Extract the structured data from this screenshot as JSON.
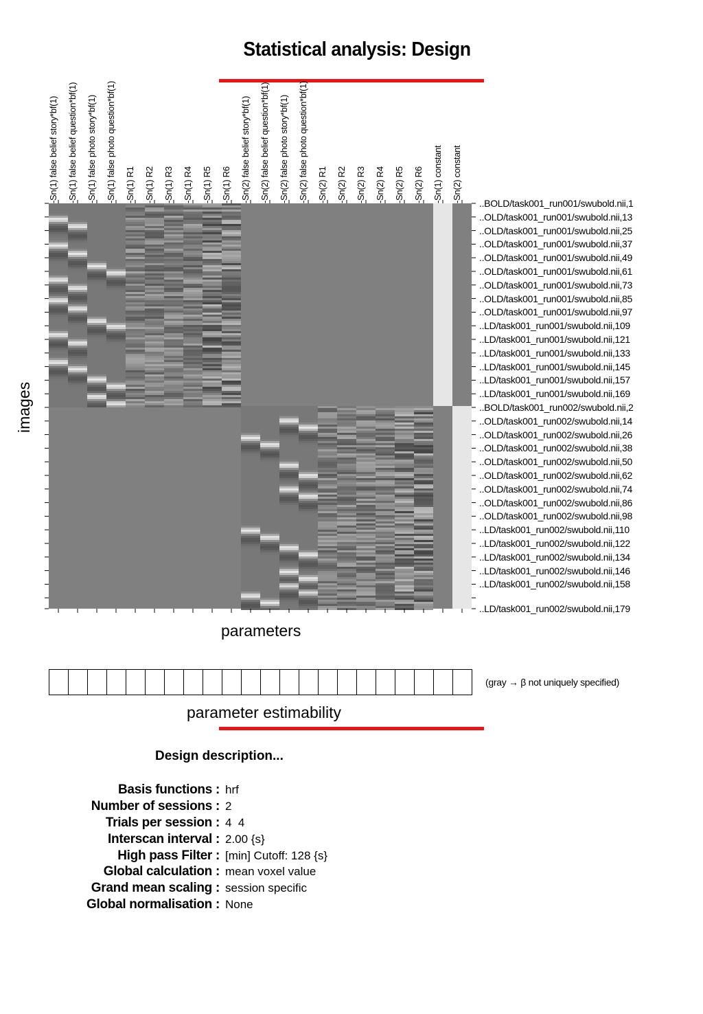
{
  "title": "Statistical analysis: Design",
  "columns": [
    "Sn(1) false belief story*bf(1)",
    "Sn(1) false belief question*bf(1)",
    "Sn(1) false photo story*bf(1)",
    "Sn(1) false photo question*bf(1)",
    "Sn(1) R1",
    "Sn(1) R2",
    "Sn(1) R3",
    "Sn(1) R4",
    "Sn(1) R5",
    "Sn(1) R6",
    "Sn(2) false belief story*bf(1)",
    "Sn(2) false belief question*bf(1)",
    "Sn(2) false photo story*bf(1)",
    "Sn(2) false photo question*bf(1)",
    "Sn(2) R1",
    "Sn(2) R2",
    "Sn(2) R3",
    "Sn(2) R4",
    "Sn(2) R5",
    "Sn(2) R6",
    "Sn(1) constant",
    "Sn(2) constant"
  ],
  "row_labels": [
    "..BOLD/task001_run001/swubold.nii,1",
    "..OLD/task001_run001/swubold.nii,13",
    "..OLD/task001_run001/swubold.nii,25",
    "..OLD/task001_run001/swubold.nii,37",
    "..OLD/task001_run001/swubold.nii,49",
    "..OLD/task001_run001/swubold.nii,61",
    "..OLD/task001_run001/swubold.nii,73",
    "..OLD/task001_run001/swubold.nii,85",
    "..OLD/task001_run001/swubold.nii,97",
    "..LD/task001_run001/swubold.nii,109",
    "..LD/task001_run001/swubold.nii,121",
    "..LD/task001_run001/swubold.nii,133",
    "..LD/task001_run001/swubold.nii,145",
    "..LD/task001_run001/swubold.nii,157",
    "..LD/task001_run001/swubold.nii,169",
    "..BOLD/task001_run002/swubold.nii,2",
    "..OLD/task001_run002/swubold.nii,14",
    "..OLD/task001_run002/swubold.nii,26",
    "..OLD/task001_run002/swubold.nii,38",
    "..OLD/task001_run002/swubold.nii,50",
    "..OLD/task001_run002/swubold.nii,62",
    "..OLD/task001_run002/swubold.nii,74",
    "..OLD/task001_run002/swubold.nii,86",
    "..OLD/task001_run002/swubold.nii,98",
    "..LD/task001_run002/swubold.nii,110",
    "..LD/task001_run002/swubold.nii,122",
    "..LD/task001_run002/swubold.nii,134",
    "..LD/task001_run002/swubold.nii,146",
    "..LD/task001_run002/swubold.nii,158",
    "..LD/task001_run002/swubold.nii,179"
  ],
  "axis": {
    "images": "images",
    "parameters": "parameters",
    "estimability": "parameter estimability",
    "estimability_note": "(gray → β not uniquely specified)"
  },
  "design": {
    "heading": "Design description...",
    "items": [
      {
        "key": "Basis functions :",
        "value": "hrf"
      },
      {
        "key": "Number of sessions :",
        "value": "2"
      },
      {
        "key": "Trials per session :",
        "value": "4  4"
      },
      {
        "key": "Interscan interval :",
        "value": "2.00 {s}"
      },
      {
        "key": "High pass Filter :",
        "value": "[min] Cutoff: 128 {s}"
      },
      {
        "key": "Global calculation :",
        "value": "mean voxel value"
      },
      {
        "key": "Grand mean scaling :",
        "value": "session specific"
      },
      {
        "key": "Global normalisation :",
        "value": "None"
      }
    ]
  },
  "colors": {
    "accent_red": "#ee1111",
    "matrix_background": "#808080",
    "constant_on": "#e6e6e6"
  }
}
